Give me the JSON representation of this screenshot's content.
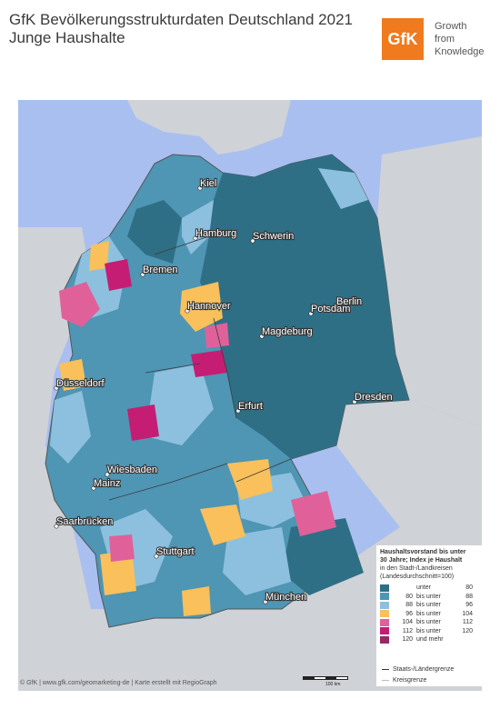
{
  "header": {
    "title_line1": "GfK Bevölkerungsstrukturdaten Deutschland 2021",
    "title_line2": "Junge Haushalte",
    "logo_text": "GfK",
    "tagline": [
      "Growth",
      "from",
      "Knowledge"
    ]
  },
  "colors": {
    "water": "#a9bff0",
    "neighbor": "#cfd2d6",
    "c_lt80": "#2e6f86",
    "c_80_88": "#4f95b4",
    "c_88_96": "#8dc0de",
    "c_96_104": "#f9c05b",
    "c_104_112": "#e0619a",
    "c_112_120": "#c51d74",
    "c_ge120": "#952a64",
    "logo": "#f07a1e"
  },
  "cities": [
    {
      "name": "Kiel"
    },
    {
      "name": "Hamburg"
    },
    {
      "name": "Schwerin"
    },
    {
      "name": "Bremen"
    },
    {
      "name": "Hannover"
    },
    {
      "name": "Berlin"
    },
    {
      "name": "Potsdam"
    },
    {
      "name": "Magdeburg"
    },
    {
      "name": "Düsseldorf"
    },
    {
      "name": "Erfurt"
    },
    {
      "name": "Dresden"
    },
    {
      "name": "Wiesbaden"
    },
    {
      "name": "Mainz"
    },
    {
      "name": "Saarbrücken"
    },
    {
      "name": "Stuttgart"
    },
    {
      "name": "München"
    }
  ],
  "legend": {
    "title_lines": [
      "Haushaltsvorstand bis unter",
      "30 Jahre; Index je Haushalt"
    ],
    "subtitle_lines": [
      "in den Stadt-/Landkreisen",
      "(Landesdurchschnitt=100)"
    ],
    "classes": [
      {
        "lo": "",
        "mid": "unter",
        "hi": "80"
      },
      {
        "lo": "80",
        "mid": "bis unter",
        "hi": "88"
      },
      {
        "lo": "88",
        "mid": "bis unter",
        "hi": "96"
      },
      {
        "lo": "96",
        "mid": "bis unter",
        "hi": "104"
      },
      {
        "lo": "104",
        "mid": "bis unter",
        "hi": "112"
      },
      {
        "lo": "112",
        "mid": "bis unter",
        "hi": "120"
      },
      {
        "lo": "120",
        "mid": "und mehr",
        "hi": ""
      }
    ],
    "border_state": "Staats-/Ländergrenze",
    "border_district": "Kreisgrenze"
  },
  "scale_label": "100 km",
  "footer": "© GfK | www.gfk.com/geomarketing-de | Karte erstellt mit RegioGraph"
}
